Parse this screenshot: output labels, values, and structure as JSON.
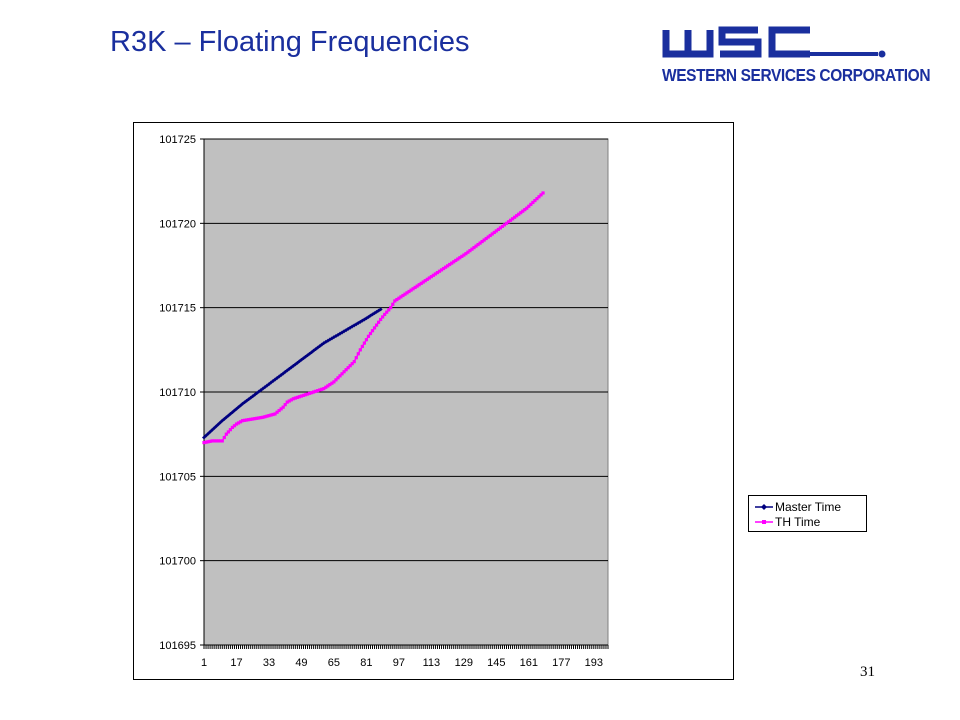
{
  "slide": {
    "title": "R3K – Floating Frequencies",
    "page_number": "31"
  },
  "logo": {
    "mark": "WSC",
    "text": "WESTERN SERVICES CORPORATION",
    "color": "#1a2f9e"
  },
  "chart_data": {
    "type": "line",
    "title": "",
    "xlabel": "",
    "ylabel": "",
    "ylim": [
      101695,
      101725
    ],
    "yticks": [
      101695,
      101700,
      101705,
      101710,
      101715,
      101720,
      101725
    ],
    "xticks": [
      1,
      17,
      33,
      49,
      65,
      81,
      97,
      113,
      129,
      145,
      161,
      177,
      193
    ],
    "xrange": [
      1,
      200
    ],
    "grid": "horizontal",
    "plot_background": "#c0c0c0",
    "legend_position": "right",
    "series": [
      {
        "name": "Master Time",
        "color": "#000080",
        "marker": "diamond",
        "x": [
          1,
          10,
          20,
          30,
          40,
          50,
          60,
          70,
          80,
          88
        ],
        "y": [
          101707.3,
          101708.3,
          101709.3,
          101710.2,
          101711.1,
          101712.0,
          101712.9,
          101713.6,
          101714.3,
          101714.9
        ]
      },
      {
        "name": "TH Time",
        "color": "#ff00ff",
        "marker": "square",
        "x": [
          1,
          5,
          10,
          12,
          15,
          17,
          20,
          25,
          30,
          33,
          36,
          40,
          42,
          45,
          50,
          55,
          60,
          65,
          70,
          75,
          78,
          82,
          85,
          88,
          90,
          93,
          95,
          100,
          110,
          120,
          130,
          140,
          150,
          160,
          168
        ],
        "y": [
          101707.0,
          101707.1,
          101707.1,
          101707.5,
          101707.9,
          101708.1,
          101708.3,
          101708.4,
          101708.5,
          101708.6,
          101708.7,
          101709.1,
          101709.4,
          101709.6,
          101709.8,
          101710.0,
          101710.2,
          101710.6,
          101711.2,
          101711.8,
          101712.5,
          101713.3,
          101713.8,
          101714.3,
          101714.6,
          101715.0,
          101715.4,
          101715.8,
          101716.6,
          101717.4,
          101718.2,
          101719.1,
          101720.0,
          101720.9,
          101721.8
        ]
      }
    ]
  }
}
